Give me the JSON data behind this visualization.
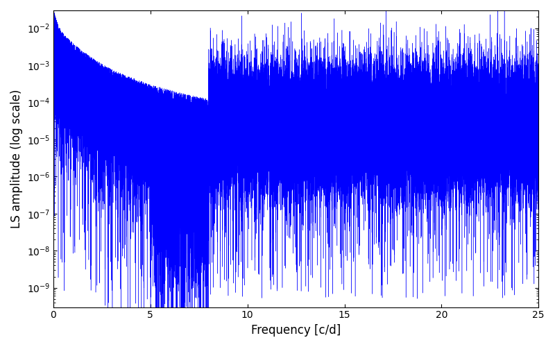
{
  "xlabel": "Frequency [c/d]",
  "ylabel": "LS amplitude (log scale)",
  "xlim": [
    0,
    25
  ],
  "ylim": [
    3e-10,
    0.03
  ],
  "line_color": "#0000ff",
  "line_width": 0.3,
  "background_color": "#ffffff",
  "figsize": [
    8.0,
    5.0
  ],
  "dpi": 100,
  "seed": 12345,
  "n_points": 50000,
  "freq_max": 25.0,
  "yticks": [
    1e-09,
    1e-08,
    1e-07,
    1e-06,
    1e-05,
    0.0001,
    0.001,
    0.01
  ],
  "xticks": [
    0,
    5,
    10,
    15,
    20,
    25
  ],
  "xlabel_fontsize": 12,
  "ylabel_fontsize": 12
}
